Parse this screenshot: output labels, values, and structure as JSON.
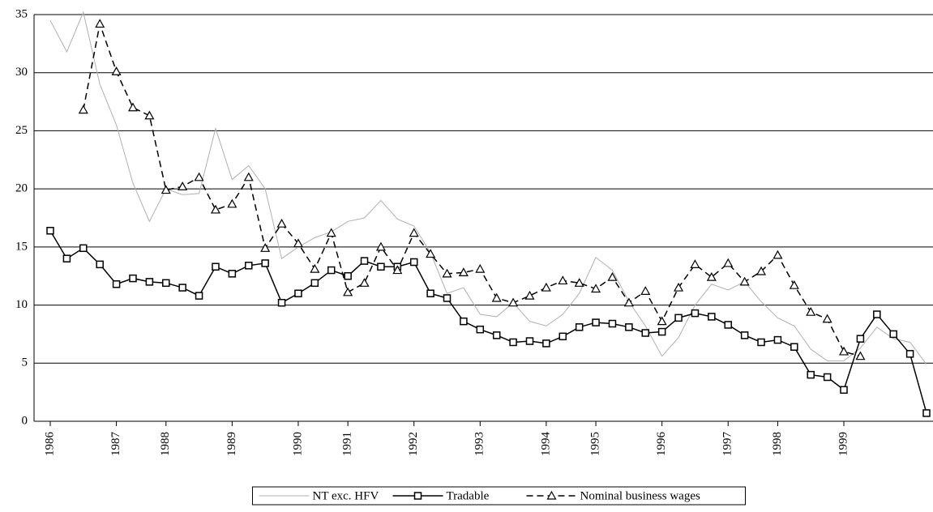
{
  "chart_data": {
    "type": "line",
    "categories": [
      "1986",
      null,
      null,
      null,
      "1987",
      null,
      null,
      "1988",
      null,
      null,
      null,
      "1989",
      null,
      null,
      null,
      "1990",
      null,
      null,
      "1991",
      null,
      null,
      null,
      "1992",
      null,
      null,
      null,
      "1993",
      null,
      null,
      null,
      "1994",
      null,
      null,
      "1995",
      null,
      null,
      null,
      "1996",
      null,
      null,
      null,
      "1997",
      null,
      null,
      "1998",
      null,
      null,
      null,
      "1999",
      null,
      null,
      null,
      null,
      null
    ],
    "series": [
      {
        "name": "NT exc. HFV",
        "color": "#b0b0b0",
        "marker": "none",
        "dash": "solid",
        "values": [
          34.5,
          31.8,
          35.2,
          29,
          25.5,
          20.5,
          17.2,
          20.0,
          19.5,
          19.6,
          25.2,
          20.8,
          22.0,
          20.0,
          14.0,
          15.0,
          15.8,
          16.3,
          17.2,
          17.5,
          19.0,
          17.4,
          16.8,
          14.5,
          11.0,
          11.5,
          9.2,
          9.0,
          10.2,
          8.6,
          8.2,
          9.2,
          11.0,
          14.1,
          13.0,
          10.3,
          8.2,
          5.6,
          7.2,
          10.0,
          11.8,
          11.3,
          12.0,
          10.3,
          8.9,
          8.2,
          6.2,
          5.2,
          5.2,
          6.3,
          8.1,
          7.1,
          6.8,
          4.9
        ]
      },
      {
        "name": "Tradable",
        "color": "#000000",
        "marker": "square",
        "dash": "solid",
        "values": [
          16.4,
          14.0,
          14.9,
          13.5,
          11.8,
          12.3,
          12.0,
          11.9,
          11.5,
          10.8,
          13.3,
          12.7,
          13.4,
          13.6,
          10.2,
          11.0,
          11.9,
          13.0,
          12.5,
          13.8,
          13.3,
          13.3,
          13.7,
          11.0,
          10.6,
          8.6,
          7.9,
          7.4,
          6.8,
          6.9,
          6.7,
          7.3,
          8.1,
          8.5,
          8.4,
          8.1,
          7.6,
          7.7,
          8.9,
          9.3,
          9.0,
          8.3,
          7.4,
          6.8,
          7.0,
          6.4,
          4.0,
          3.8,
          2.7,
          7.1,
          9.2,
          7.5,
          5.8,
          0.7
        ]
      },
      {
        "name": "Nominal business wages",
        "color": "#000000",
        "marker": "triangle",
        "dash": "dashed",
        "values": [
          null,
          null,
          26.8,
          34.2,
          30.1,
          27.0,
          26.3,
          19.9,
          20.2,
          21.0,
          18.2,
          18.7,
          21.0,
          14.9,
          17.0,
          15.3,
          13.1,
          16.2,
          11.1,
          11.9,
          15.0,
          13.0,
          16.2,
          14.4,
          12.7,
          12.8,
          13.1,
          10.6,
          10.2,
          10.8,
          11.5,
          12.1,
          11.9,
          11.4,
          12.4,
          10.2,
          11.2,
          8.6,
          11.5,
          13.5,
          12.4,
          13.6,
          12.0,
          12.9,
          14.3,
          11.7,
          9.4,
          8.8,
          6.0,
          5.6,
          null,
          null,
          null,
          null
        ]
      }
    ],
    "ylim": [
      0,
      35
    ],
    "yticks": [
      0,
      5,
      10,
      15,
      20,
      25,
      30,
      35
    ],
    "grid": true,
    "legend": "bottom"
  }
}
